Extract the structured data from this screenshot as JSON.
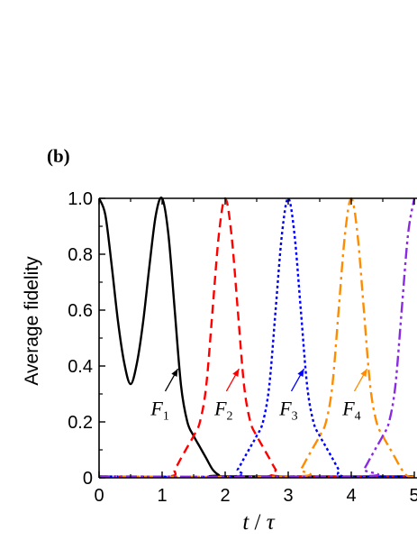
{
  "panel_label": "(b)",
  "chart_data": {
    "type": "line",
    "xlabel_parts": [
      "t",
      " / ",
      "τ"
    ],
    "ylabel": "Average fidelity",
    "xlim": [
      0,
      5
    ],
    "ylim": [
      0,
      1
    ],
    "x_ticks": [
      0,
      1,
      2,
      3,
      4,
      5
    ],
    "x_tick_labels": [
      "0",
      "1",
      "2",
      "3",
      "4",
      "5"
    ],
    "y_ticks": [
      0,
      0.2,
      0.4,
      0.6,
      0.8,
      1.0
    ],
    "y_tick_labels": [
      "0",
      "0.2",
      "0.4",
      "0.6",
      "0.8",
      "1.0"
    ],
    "grid": false,
    "series": [
      {
        "label_main": "F",
        "label_sub": "1",
        "color": "#000000",
        "style": "solid",
        "x": [
          0,
          0.1,
          0.2,
          0.3,
          0.4,
          0.5,
          0.6,
          0.7,
          0.8,
          0.9,
          1.0,
          1.1,
          1.2,
          1.3,
          1.4,
          1.5,
          1.6,
          1.7,
          1.8,
          1.9,
          2.0,
          5.0
        ],
        "y": [
          1.0,
          0.94,
          0.76,
          0.56,
          0.41,
          0.335,
          0.41,
          0.56,
          0.76,
          0.94,
          1.0,
          0.87,
          0.6,
          0.33,
          0.2,
          0.15,
          0.11,
          0.07,
          0.03,
          0.01,
          0.005,
          0.005
        ]
      },
      {
        "label_main": "F",
        "label_sub": "2",
        "color": "#ff0000",
        "style": "dashed",
        "x": [
          0,
          1.1,
          1.2,
          1.3,
          1.4,
          1.5,
          1.6,
          1.7,
          1.8,
          1.9,
          2.0,
          2.1,
          2.2,
          2.3,
          2.4,
          2.5,
          2.6,
          2.7,
          2.8,
          2.9,
          5.0
        ],
        "y": [
          0.005,
          0.005,
          0.03,
          0.07,
          0.11,
          0.15,
          0.2,
          0.33,
          0.6,
          0.87,
          1.0,
          0.87,
          0.6,
          0.33,
          0.2,
          0.15,
          0.11,
          0.07,
          0.03,
          0.005,
          0.005
        ]
      },
      {
        "label_main": "F",
        "label_sub": "3",
        "color": "#0000ff",
        "style": "dotted",
        "x": [
          0,
          2.1,
          2.2,
          2.3,
          2.4,
          2.5,
          2.6,
          2.7,
          2.8,
          2.9,
          3.0,
          3.1,
          3.2,
          3.3,
          3.4,
          3.5,
          3.6,
          3.7,
          3.8,
          3.9,
          5.0
        ],
        "y": [
          0.005,
          0.005,
          0.03,
          0.07,
          0.11,
          0.15,
          0.2,
          0.33,
          0.6,
          0.87,
          1.0,
          0.87,
          0.6,
          0.33,
          0.2,
          0.15,
          0.11,
          0.07,
          0.03,
          0.005,
          0.005
        ]
      },
      {
        "label_main": "F",
        "label_sub": "4",
        "color": "#ff8c00",
        "style": "dashdot",
        "x": [
          0,
          3.1,
          3.2,
          3.3,
          3.4,
          3.5,
          3.6,
          3.7,
          3.8,
          3.9,
          4.0,
          4.1,
          4.2,
          4.3,
          4.4,
          4.5,
          4.6,
          4.7,
          4.8,
          4.9,
          5.0
        ],
        "y": [
          0.005,
          0.005,
          0.03,
          0.07,
          0.11,
          0.15,
          0.2,
          0.33,
          0.6,
          0.87,
          1.0,
          0.87,
          0.6,
          0.33,
          0.2,
          0.15,
          0.11,
          0.07,
          0.03,
          0.005,
          0.005
        ]
      },
      {
        "label_main": "",
        "label_sub": "",
        "color": "#8a2be2",
        "style": "dashdotdot",
        "x": [
          0,
          4.1,
          4.2,
          4.3,
          4.4,
          4.5,
          4.6,
          4.7,
          4.8,
          4.9,
          5.0
        ],
        "y": [
          0.005,
          0.005,
          0.03,
          0.07,
          0.11,
          0.15,
          0.2,
          0.33,
          0.6,
          0.87,
          1.0
        ]
      }
    ],
    "annotations": [
      {
        "series": 0,
        "text_main": "F",
        "text_sub": "1",
        "label_at": [
          0.82,
          0.25
        ],
        "arrow_from": [
          1.05,
          0.31
        ],
        "arrow_to": [
          1.25,
          0.39
        ]
      },
      {
        "series": 1,
        "text_main": "F",
        "text_sub": "2",
        "label_at": [
          1.83,
          0.25
        ],
        "arrow_from": [
          2.02,
          0.31
        ],
        "arrow_to": [
          2.22,
          0.39
        ]
      },
      {
        "series": 2,
        "text_main": "F",
        "text_sub": "3",
        "label_at": [
          2.86,
          0.25
        ],
        "arrow_from": [
          3.05,
          0.31
        ],
        "arrow_to": [
          3.25,
          0.39
        ]
      },
      {
        "series": 3,
        "text_main": "F",
        "text_sub": "4",
        "label_at": [
          3.86,
          0.25
        ],
        "arrow_from": [
          4.05,
          0.31
        ],
        "arrow_to": [
          4.25,
          0.39
        ]
      }
    ]
  }
}
